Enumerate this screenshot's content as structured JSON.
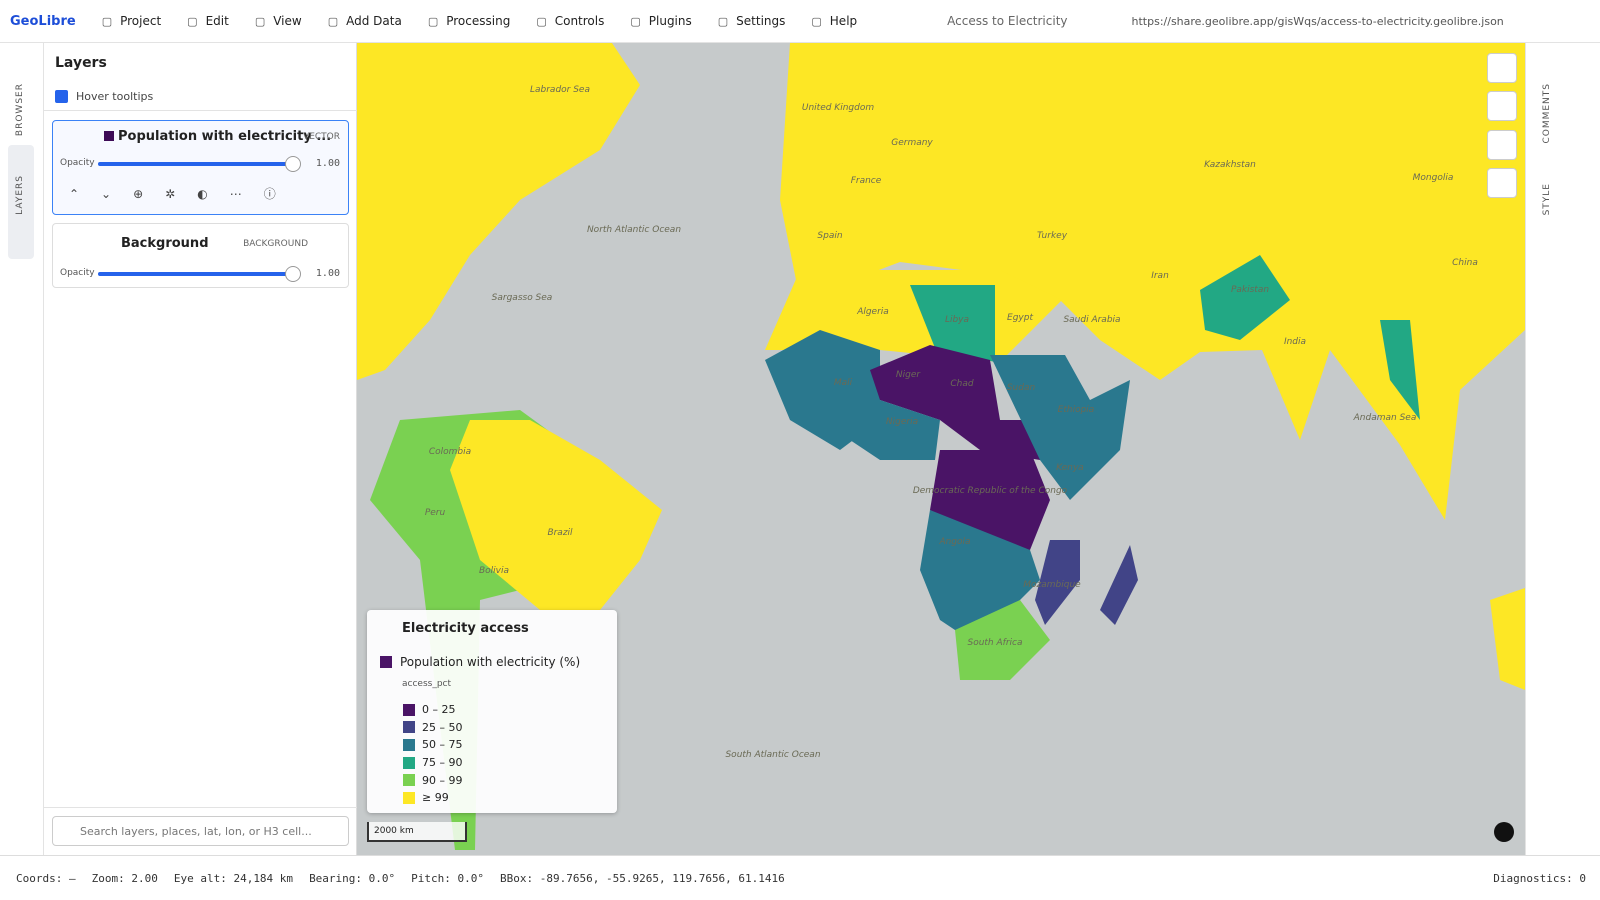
{
  "menu": {
    "brand": "GeoLibre",
    "items": [
      "Project",
      "Edit",
      "View",
      "Add Data",
      "Processing",
      "Controls",
      "Plugins",
      "Settings",
      "Help"
    ],
    "project": "Access to Electricity",
    "url": "https://share.geolibre.app/gisWqs/access-to-electricity.geolibre.json"
  },
  "left_tabs": [
    "BROWSER",
    "LAYERS"
  ],
  "right_tabs": [
    "COMMENTS",
    "STYLE"
  ],
  "layers_panel": {
    "title": "Layers",
    "hover_tooltips": "Hover tooltips",
    "opacity_label": "Opacity",
    "layers": [
      {
        "name": "Population with electricity ...",
        "kind": "VECTOR",
        "opacity": "1.00"
      },
      {
        "name": "Background",
        "kind": "BACKGROUND",
        "opacity": "1.00"
      }
    ],
    "search_placeholder": "Search layers, places, lat, lon, or H3 cell..."
  },
  "legend": {
    "title": "Electricity access",
    "layer": "Population with electricity (%)",
    "field": "access_pct",
    "classes": [
      {
        "label": "0 – 25",
        "color": "#4a1466"
      },
      {
        "label": "25 – 50",
        "color": "#414487"
      },
      {
        "label": "50 – 75",
        "color": "#2a788e"
      },
      {
        "label": "75 – 90",
        "color": "#22a884"
      },
      {
        "label": "90 – 99",
        "color": "#7ad151"
      },
      {
        "label": "≥ 99",
        "color": "#fde725"
      }
    ]
  },
  "scale": "2000 km",
  "map_labels": [
    "Labrador Sea",
    "North Atlantic Ocean",
    "Sargasso Sea",
    "South Atlantic Ocean",
    "United Kingdom",
    "Germany",
    "France",
    "Spain",
    "Turkey",
    "Algeria",
    "Libya",
    "Egypt",
    "Niger",
    "Chad",
    "Mali",
    "Nigeria",
    "Sudan",
    "Ethiopia",
    "Kenya",
    "Democratic Republic of the Congo",
    "Angola",
    "South Africa",
    "Iran",
    "Saudi Arabia",
    "India",
    "China",
    "Kazakhstan",
    "Mongolia",
    "Pakistan",
    "Brazil",
    "Colombia",
    "Peru",
    "Bolivia",
    "Andaman Sea",
    "Mozambique"
  ],
  "status": {
    "items": [
      "Coords: —",
      "Zoom: 2.00",
      "Eye alt: 24,184 km",
      "Bearing: 0.0°",
      "Pitch: 0.0°",
      "BBox: -89.7656, -55.9265, 119.7656, 61.1416"
    ],
    "diagnostics": "Diagnostics: 0"
  }
}
